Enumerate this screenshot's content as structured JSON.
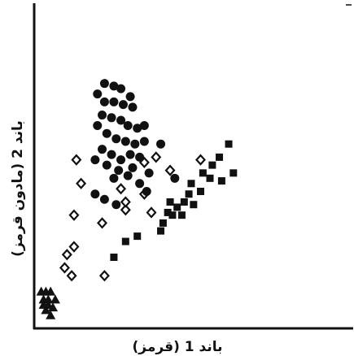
{
  "chart_data": {
    "type": "scatter",
    "title": "",
    "xlabel": "باند 1 (قرمز)",
    "ylabel": "باند 2 (مادون قرمز)",
    "xlim": [
      0,
      100
    ],
    "ylim": [
      0,
      100
    ],
    "grid": false,
    "legend": "none",
    "ticks": "none",
    "series": [
      {
        "marker": "triangle",
        "color": "#111111",
        "points": [
          [
            3,
            14
          ],
          [
            5,
            14
          ],
          [
            7,
            14
          ],
          [
            4,
            11
          ],
          [
            6,
            11
          ],
          [
            9,
            11
          ],
          [
            4,
            9
          ],
          [
            6,
            9
          ],
          [
            8,
            8
          ],
          [
            5,
            7
          ],
          [
            7,
            5
          ]
        ]
      },
      {
        "marker": "diamond-open",
        "color": "#111111",
        "points": [
          [
            14,
            28
          ],
          [
            13,
            23
          ],
          [
            16,
            20
          ],
          [
            17,
            31
          ],
          [
            17,
            43
          ],
          [
            18,
            64
          ],
          [
            20,
            55
          ],
          [
            29,
            40
          ],
          [
            30,
            20
          ],
          [
            39,
            45
          ],
          [
            37,
            53
          ],
          [
            39,
            48
          ],
          [
            47,
            63
          ],
          [
            50,
            44
          ],
          [
            47,
            51
          ],
          [
            52,
            65
          ],
          [
            58,
            60
          ],
          [
            71,
            64
          ]
        ]
      },
      {
        "marker": "circle",
        "color": "#111111",
        "points": [
          [
            30,
            93
          ],
          [
            34,
            92
          ],
          [
            37,
            91
          ],
          [
            41,
            88
          ],
          [
            27,
            89
          ],
          [
            30,
            86
          ],
          [
            34,
            86
          ],
          [
            38,
            85
          ],
          [
            42,
            84
          ],
          [
            29,
            81
          ],
          [
            33,
            80
          ],
          [
            37,
            79
          ],
          [
            40,
            77
          ],
          [
            44,
            76
          ],
          [
            47,
            77
          ],
          [
            27,
            77
          ],
          [
            31,
            74
          ],
          [
            35,
            72
          ],
          [
            39,
            71
          ],
          [
            43,
            70
          ],
          [
            47,
            71
          ],
          [
            29,
            68
          ],
          [
            33,
            66
          ],
          [
            37,
            64
          ],
          [
            41,
            66
          ],
          [
            45,
            65
          ],
          [
            31,
            62
          ],
          [
            36,
            60
          ],
          [
            40,
            58
          ],
          [
            26,
            64
          ],
          [
            42,
            61
          ],
          [
            49,
            59
          ],
          [
            45,
            55
          ],
          [
            34,
            57
          ],
          [
            26,
            51
          ],
          [
            30,
            49
          ],
          [
            35,
            47
          ],
          [
            48,
            52
          ],
          [
            60,
            57
          ],
          [
            54,
            70
          ]
        ]
      },
      {
        "marker": "square",
        "color": "#111111",
        "points": [
          [
            34,
            27
          ],
          [
            39,
            33
          ],
          [
            44,
            35
          ],
          [
            54,
            37
          ],
          [
            55,
            40
          ],
          [
            57,
            44
          ],
          [
            58,
            48
          ],
          [
            59,
            43
          ],
          [
            61,
            46
          ],
          [
            63,
            43
          ],
          [
            64,
            48
          ],
          [
            66,
            51
          ],
          [
            67,
            55
          ],
          [
            68,
            47
          ],
          [
            71,
            52
          ],
          [
            72,
            59
          ],
          [
            75,
            57
          ],
          [
            76,
            62
          ],
          [
            79,
            65
          ],
          [
            80,
            56
          ],
          [
            83,
            70
          ],
          [
            85,
            59
          ]
        ]
      }
    ]
  }
}
